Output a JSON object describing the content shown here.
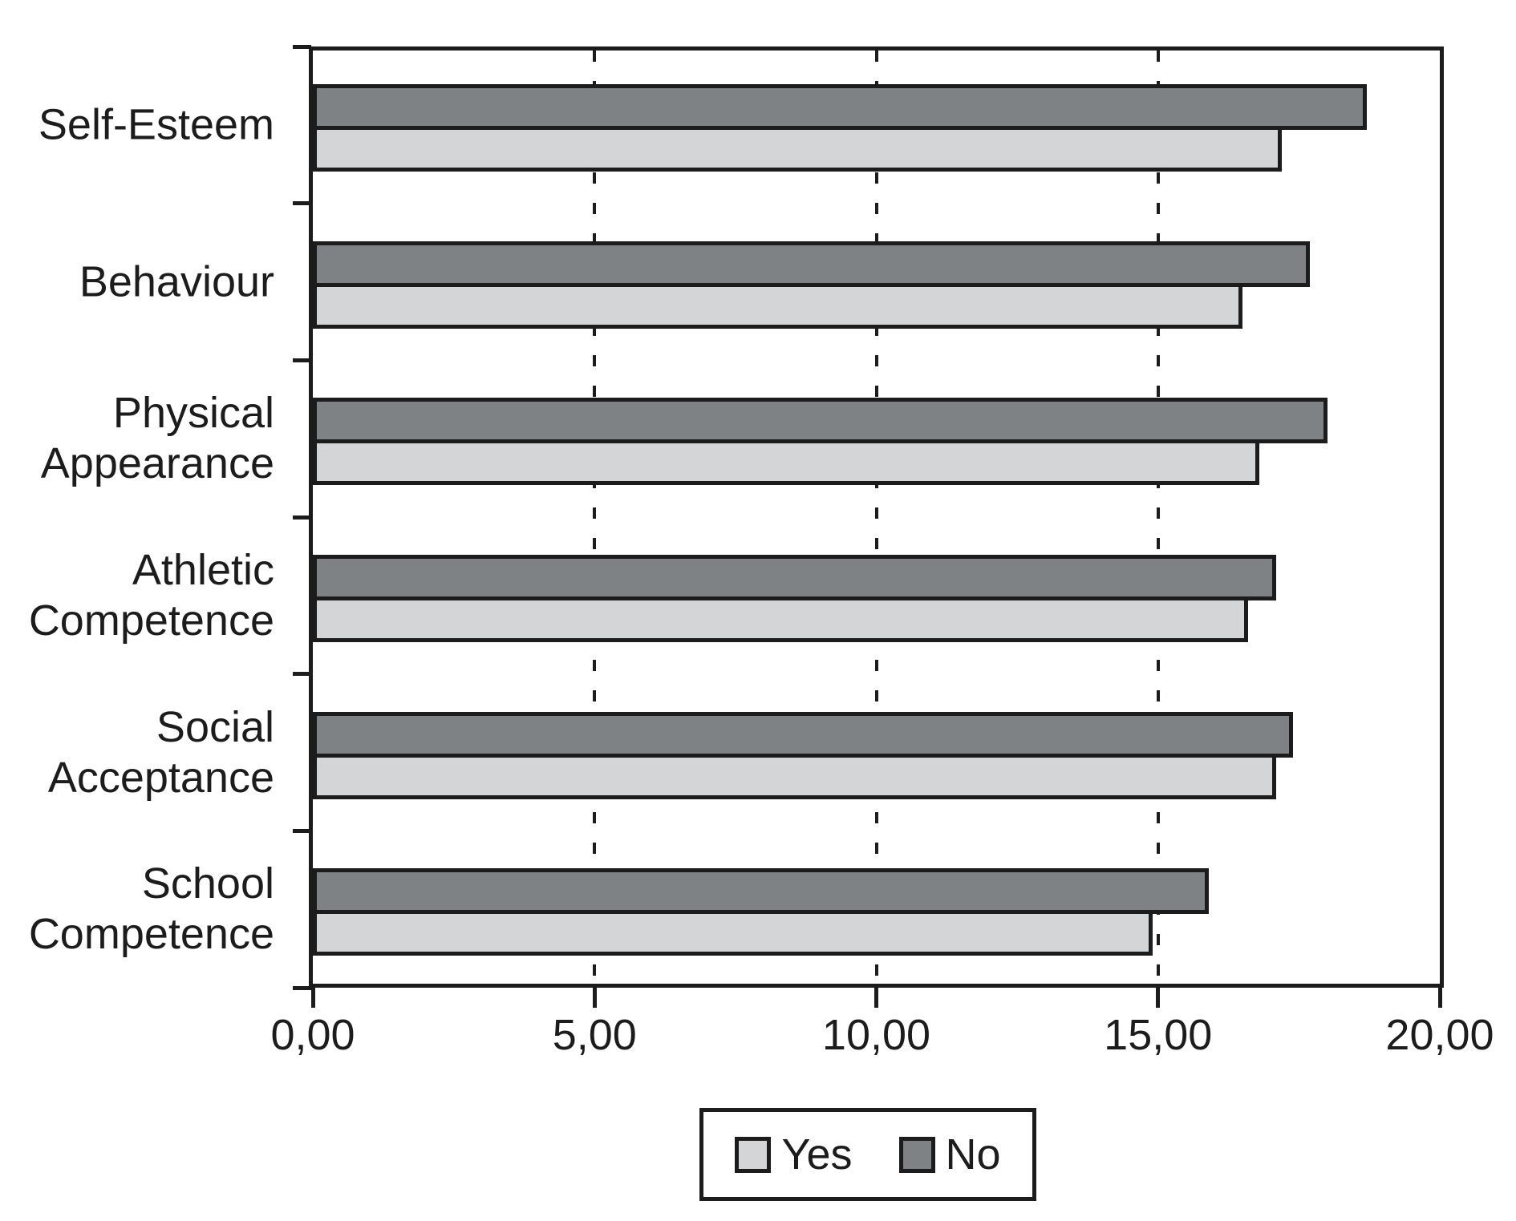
{
  "figure": {
    "background": "#ffffff",
    "ink_color": "#1c1c1c"
  },
  "chart_data": {
    "type": "bar",
    "orientation": "horizontal",
    "title": "",
    "xlabel": "",
    "ylabel": "",
    "grid": "dashed-vertical",
    "legend_position": "bottom",
    "categories": [
      "Self-Esteem",
      "Behaviour",
      "Physical Appearance",
      "Athletic Competence",
      "Social Acceptance",
      "School Competence"
    ],
    "series": [
      {
        "name": "Yes",
        "color": "#d3d5d7",
        "values": [
          17.2,
          16.5,
          16.8,
          16.6,
          17.1,
          14.9
        ]
      },
      {
        "name": "No",
        "color": "#7f8285",
        "values": [
          18.7,
          17.7,
          18.0,
          17.1,
          17.4,
          15.9
        ]
      }
    ],
    "bar_order_top_to_bottom": [
      "No",
      "Yes"
    ],
    "xlim": [
      0,
      20
    ],
    "x_ticks": [
      {
        "value": 0,
        "label": "0,00"
      },
      {
        "value": 5,
        "label": "5,00"
      },
      {
        "value": 10,
        "label": "10,00"
      },
      {
        "value": 15,
        "label": "15,00"
      },
      {
        "value": 20,
        "label": "20,00"
      }
    ],
    "gridline_values": [
      5,
      10,
      15
    ],
    "legend": {
      "entries": [
        {
          "label": "Yes",
          "color": "#d3d5d7"
        },
        {
          "label": "No",
          "color": "#7f8285"
        }
      ]
    }
  }
}
